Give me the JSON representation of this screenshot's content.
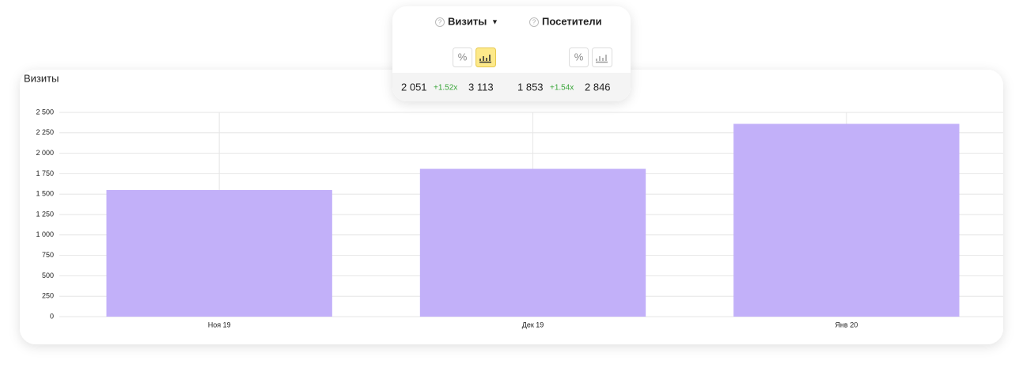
{
  "popup": {
    "help_icon": "?",
    "percent_label": "%",
    "columns": [
      {
        "title": "Визиты",
        "dropdown": "▼",
        "value": "2 051",
        "ratio": "+1.52x",
        "compare": "3 113"
      },
      {
        "title": "Посетители",
        "value": "1 853",
        "ratio": "+1.54x",
        "compare": "2 846"
      }
    ]
  },
  "chart_data": {
    "type": "bar",
    "title": "Визиты",
    "categories": [
      "Ноя 19",
      "Дек 19",
      "Янв 20"
    ],
    "values": [
      1550,
      1810,
      2360
    ],
    "color": "#c2b0f9",
    "ylim": [
      0,
      2500
    ],
    "yticks": [
      0,
      250,
      500,
      750,
      {
        "value": 1000,
        "label": "1 000"
      },
      {
        "value": 1250,
        "label": "1 250"
      },
      {
        "value": 1500,
        "label": "1 500"
      },
      {
        "value": 1750,
        "label": "1 750"
      },
      {
        "value": 2000,
        "label": "2 000"
      },
      {
        "value": 2250,
        "label": "2 250"
      },
      {
        "value": 2500,
        "label": "2 500"
      }
    ],
    "grid": true
  }
}
